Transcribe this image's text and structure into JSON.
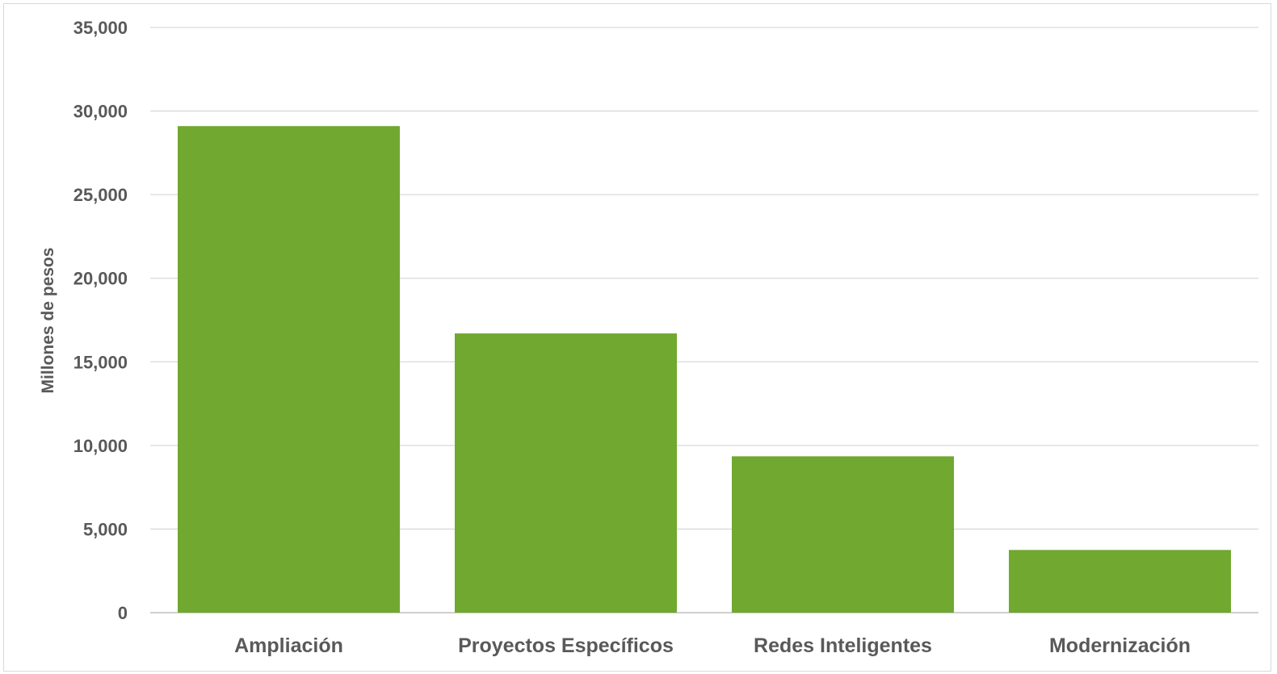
{
  "chart_data": {
    "type": "bar",
    "categories": [
      "Ampliación",
      "Proyectos Específicos",
      "Redes Inteligentes",
      "Modernización"
    ],
    "values": [
      29100,
      16700,
      9350,
      3750
    ],
    "title": "",
    "xlabel": "",
    "ylabel": "Millones de pesos",
    "ylim": [
      0,
      35000
    ],
    "yticks": [
      0,
      5000,
      10000,
      15000,
      20000,
      25000,
      30000,
      35000
    ],
    "ytick_labels": [
      "0",
      "5,000",
      "10,000",
      "15,000",
      "20,000",
      "25,000",
      "30,000",
      "35,000"
    ],
    "grid": true,
    "legend": "none",
    "bar_color": "#70a830"
  }
}
